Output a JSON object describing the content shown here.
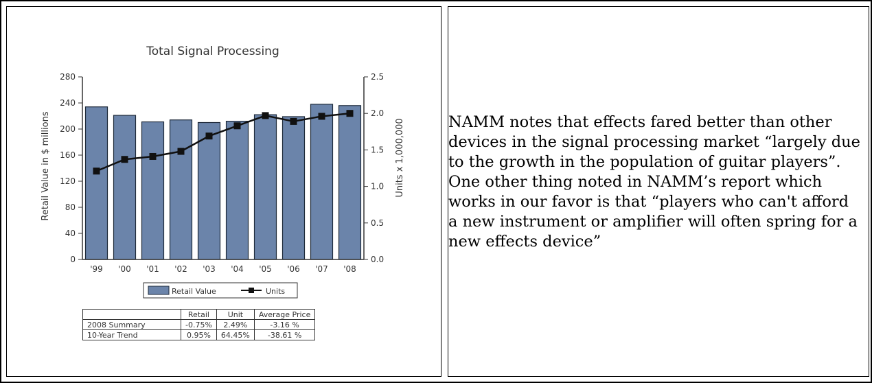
{
  "chart_data": {
    "type": "bar+line",
    "title": "Total Signal Processing",
    "ylabel": "Retail Value in $ millions",
    "y2label": "Units x 1,000,000",
    "categories": [
      "'99",
      "'00",
      "'01",
      "'02",
      "'03",
      "'04",
      "'05",
      "'06",
      "'07",
      "'08"
    ],
    "ylim": [
      0,
      280
    ],
    "yticks": [
      0,
      40,
      80,
      120,
      160,
      200,
      240,
      280
    ],
    "y2lim": [
      0.0,
      2.5
    ],
    "y2ticks": [
      "0.0",
      "0.5",
      "1.0",
      "1.5",
      "2.0",
      "2.5"
    ],
    "series": [
      {
        "name": "Retail Value",
        "kind": "bar",
        "axis": "left",
        "values": [
          234,
          221,
          211,
          214,
          210,
          212,
          222,
          219,
          238,
          236
        ]
      },
      {
        "name": "Units",
        "kind": "line",
        "axis": "right",
        "values": [
          1.21,
          1.37,
          1.41,
          1.48,
          1.69,
          1.83,
          1.97,
          1.89,
          1.96,
          2.0
        ]
      }
    ],
    "colors": {
      "bar": "#6b84aa",
      "bar_stroke": "#1e2a3a",
      "line": "#111111"
    },
    "legend_position": "bottom"
  },
  "summary_table": {
    "headers": [
      "",
      "Retail",
      "Unit",
      "Average Price"
    ],
    "rows": [
      [
        "2008 Summary",
        "-0.75%",
        "2.49%",
        "-3.16 %"
      ],
      [
        "10-Year Trend",
        "0.95%",
        "64.45%",
        "-38.61 %"
      ]
    ]
  },
  "paragraph": "NAMM notes that effects fared better than other devices in the signal processing market “largely due to the growth in the population of guitar players”. One other thing noted in NAMM’s report which works in our favor is that “players who can't afford a new instrument or amplifier will often spring for a new effects device”"
}
